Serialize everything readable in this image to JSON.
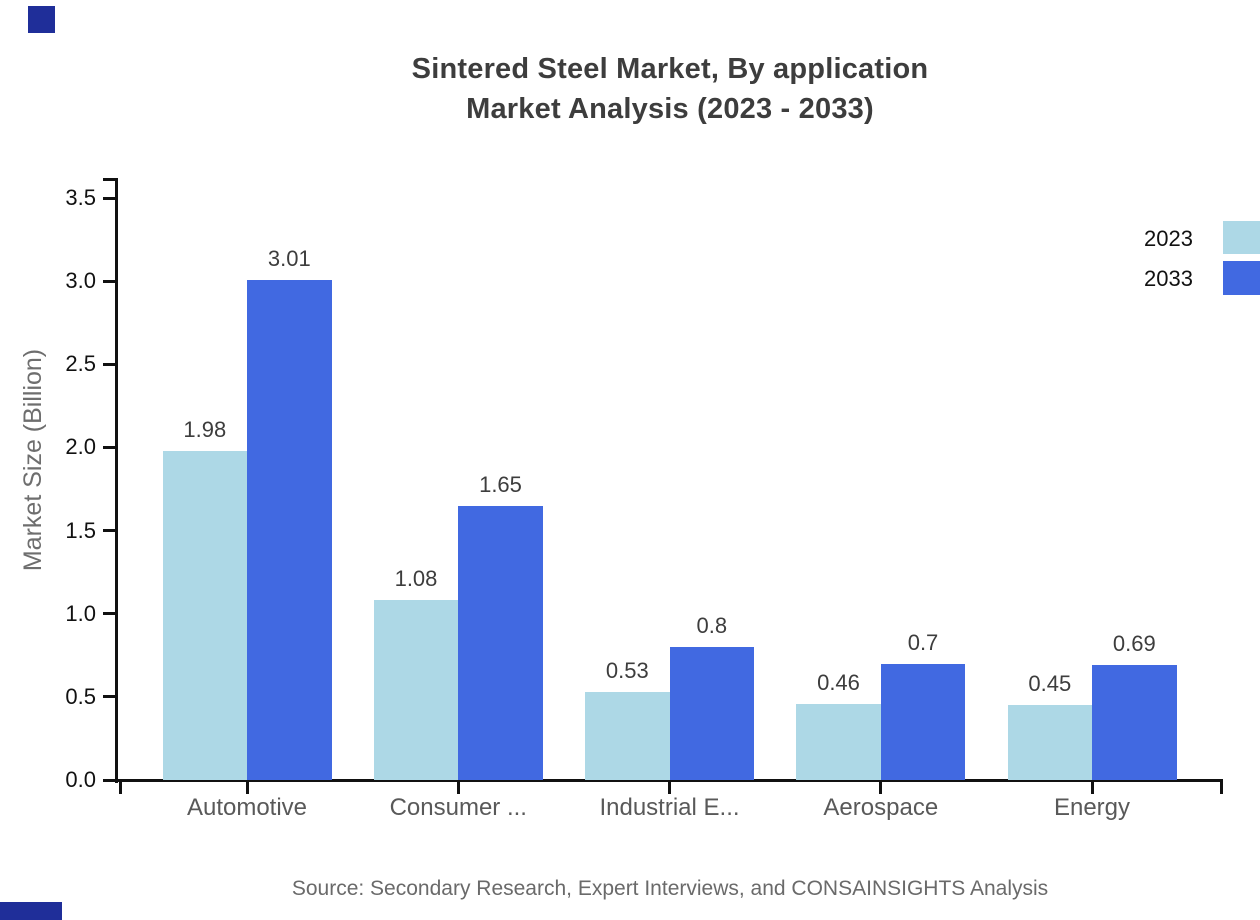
{
  "page": {
    "background": "#ffffff"
  },
  "brand": {
    "corner_color": "#1f2e99"
  },
  "chart_data": {
    "type": "bar",
    "title": "Sintered Steel Market, By application",
    "subtitle": "Market Analysis (2023 - 2033)",
    "categories": [
      "Automotive",
      "Consumer ...",
      "Industrial E...",
      "Aerospace",
      "Energy"
    ],
    "series": [
      {
        "name": "2023",
        "color": "#ADD8E6",
        "values": [
          1.98,
          1.08,
          0.53,
          0.46,
          0.45
        ]
      },
      {
        "name": "2033",
        "color": "#4169E1",
        "values": [
          3.01,
          1.65,
          0.8,
          0.7,
          0.69
        ]
      }
    ],
    "ylabel": "Market Size (Billion)",
    "ylim": [
      0,
      3.5
    ],
    "ytick_step": 0.5,
    "ytick_labels": [
      "0.0",
      "0.5",
      "1.0",
      "1.5",
      "2.0",
      "2.5",
      "3.0",
      "3.5"
    ],
    "grid": false,
    "legend_position": "top-right",
    "bar_value_labels": true,
    "axis_color": "#111111",
    "source": "Source: Secondary Research, Expert Interviews, and CONSAINSIGHTS Analysis"
  }
}
